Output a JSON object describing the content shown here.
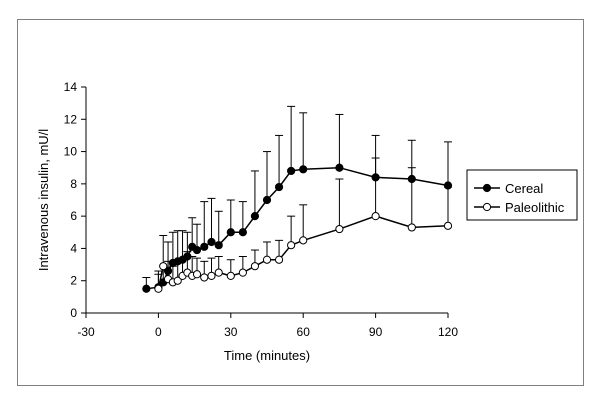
{
  "chart_data": {
    "type": "line",
    "xlabel": "Time (minutes)",
    "ylabel": "Intravenous insulin, mU/l",
    "xlim": [
      -30,
      120
    ],
    "ylim": [
      0,
      14
    ],
    "x_ticks": [
      "-30",
      "0",
      "30",
      "60",
      "90",
      "120"
    ],
    "y_ticks": [
      "0",
      "2",
      "4",
      "6",
      "8",
      "10",
      "12",
      "14"
    ],
    "grid": false,
    "legend_position": "right",
    "series": [
      {
        "name": "Cereal",
        "marker": "filled-circle",
        "color": "#000000",
        "points": [
          {
            "x": -5,
            "y": 1.5,
            "err": 0.7
          },
          {
            "x": 0,
            "y": 1.6,
            "err": 1.0
          },
          {
            "x": 2,
            "y": 1.9,
            "err": 1.0
          },
          {
            "x": 4,
            "y": 2.6,
            "err": 1.8
          },
          {
            "x": 6,
            "y": 3.1,
            "err": 1.9
          },
          {
            "x": 8,
            "y": 3.2,
            "err": 1.9
          },
          {
            "x": 10,
            "y": 3.3,
            "err": 1.8
          },
          {
            "x": 12,
            "y": 3.5,
            "err": 1.5
          },
          {
            "x": 14,
            "y": 4.1,
            "err": 1.8
          },
          {
            "x": 16,
            "y": 3.9,
            "err": 1.6
          },
          {
            "x": 19,
            "y": 4.1,
            "err": 2.8
          },
          {
            "x": 22,
            "y": 4.4,
            "err": 2.7
          },
          {
            "x": 25,
            "y": 4.2,
            "err": 2.1
          },
          {
            "x": 30,
            "y": 5.0,
            "err": 2.0
          },
          {
            "x": 35,
            "y": 5.0,
            "err": 1.9
          },
          {
            "x": 40,
            "y": 6.0,
            "err": 2.8
          },
          {
            "x": 45,
            "y": 7.0,
            "err": 3.0
          },
          {
            "x": 50,
            "y": 7.8,
            "err": 3.2
          },
          {
            "x": 55,
            "y": 8.8,
            "err": 4.0
          },
          {
            "x": 60,
            "y": 8.9,
            "err": 3.5
          },
          {
            "x": 75,
            "y": 9.0,
            "err": 3.3
          },
          {
            "x": 90,
            "y": 8.4,
            "err": 2.6
          },
          {
            "x": 105,
            "y": 8.3,
            "err": 2.4
          },
          {
            "x": 120,
            "y": 7.9,
            "err": 2.7
          }
        ]
      },
      {
        "name": "Paleolithic",
        "marker": "open-circle",
        "color": "#000000",
        "points": [
          {
            "x": 0,
            "y": 1.5,
            "err": 0.9
          },
          {
            "x": 2,
            "y": 2.9,
            "err": 1.9
          },
          {
            "x": 4,
            "y": 2.1,
            "err": 1.1
          },
          {
            "x": 6,
            "y": 1.9,
            "err": 1.0
          },
          {
            "x": 8,
            "y": 2.0,
            "err": 1.2
          },
          {
            "x": 10,
            "y": 2.3,
            "err": 1.1
          },
          {
            "x": 12,
            "y": 2.5,
            "err": 1.3
          },
          {
            "x": 14,
            "y": 2.3,
            "err": 1.2
          },
          {
            "x": 16,
            "y": 2.4,
            "err": 1.0
          },
          {
            "x": 19,
            "y": 2.2,
            "err": 1.0
          },
          {
            "x": 22,
            "y": 2.3,
            "err": 1.1
          },
          {
            "x": 25,
            "y": 2.5,
            "err": 1.0
          },
          {
            "x": 30,
            "y": 2.3,
            "err": 1.0
          },
          {
            "x": 35,
            "y": 2.5,
            "err": 1.0
          },
          {
            "x": 40,
            "y": 2.9,
            "err": 1.0
          },
          {
            "x": 45,
            "y": 3.3,
            "err": 1.1
          },
          {
            "x": 50,
            "y": 3.3,
            "err": 1.2
          },
          {
            "x": 55,
            "y": 4.2,
            "err": 1.8
          },
          {
            "x": 60,
            "y": 4.5,
            "err": 2.2
          },
          {
            "x": 75,
            "y": 5.2,
            "err": 3.1
          },
          {
            "x": 90,
            "y": 6.0,
            "err": 3.6
          },
          {
            "x": 105,
            "y": 5.3,
            "err": 3.7
          },
          {
            "x": 120,
            "y": 5.4,
            "err": 2.4
          }
        ]
      }
    ]
  }
}
